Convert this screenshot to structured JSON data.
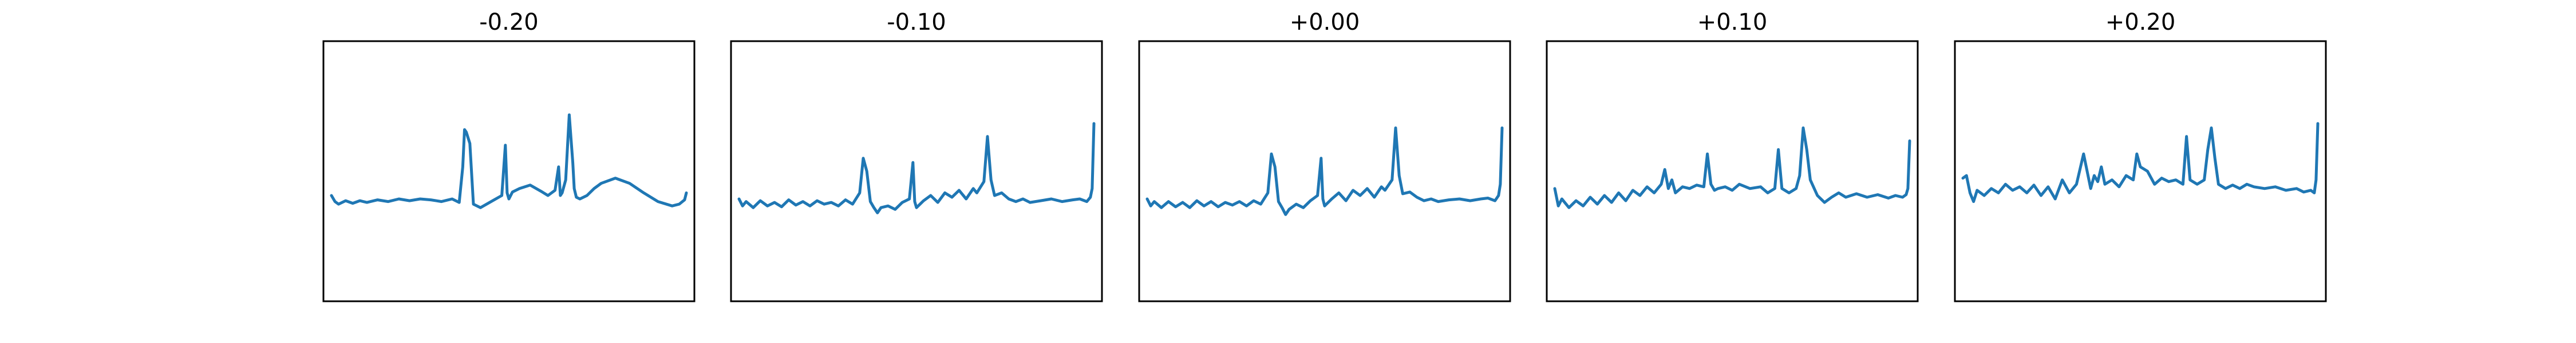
{
  "chart_data": [
    {
      "type": "line",
      "title": "-0.20",
      "xticks": [],
      "yticks": [],
      "grid": false,
      "series": [
        {
          "color": "#1f77b4",
          "x": [
            0.0,
            0.01,
            0.02,
            0.04,
            0.06,
            0.08,
            0.1,
            0.13,
            0.16,
            0.19,
            0.22,
            0.25,
            0.28,
            0.31,
            0.34,
            0.36,
            0.37,
            0.375,
            0.38,
            0.39,
            0.4,
            0.42,
            0.45,
            0.48,
            0.49,
            0.495,
            0.5,
            0.51,
            0.53,
            0.56,
            0.59,
            0.61,
            0.63,
            0.64,
            0.645,
            0.65,
            0.66,
            0.67,
            0.68,
            0.684,
            0.69,
            0.7,
            0.72,
            0.74,
            0.76,
            0.8,
            0.84,
            0.88,
            0.92,
            0.96,
            0.98,
            0.995,
            1.0
          ],
          "y": [
            0.02,
            -0.05,
            -0.08,
            -0.04,
            -0.07,
            -0.04,
            -0.06,
            -0.03,
            -0.05,
            -0.02,
            -0.04,
            -0.02,
            -0.03,
            -0.05,
            -0.02,
            -0.06,
            0.35,
            0.78,
            0.75,
            0.62,
            -0.08,
            -0.12,
            -0.05,
            0.02,
            0.6,
            0.05,
            -0.02,
            0.06,
            0.1,
            0.14,
            0.07,
            0.02,
            0.08,
            0.35,
            0.02,
            0.05,
            0.2,
            0.95,
            0.4,
            0.1,
            0.0,
            -0.02,
            0.02,
            0.1,
            0.16,
            0.22,
            0.16,
            0.05,
            -0.05,
            -0.1,
            -0.08,
            -0.03,
            0.05
          ]
        }
      ]
    },
    {
      "type": "line",
      "title": "-0.10",
      "xticks": [],
      "yticks": [],
      "grid": false,
      "series": [
        {
          "color": "#1f77b4",
          "x": [
            0.0,
            0.01,
            0.02,
            0.04,
            0.06,
            0.08,
            0.1,
            0.12,
            0.14,
            0.16,
            0.18,
            0.2,
            0.22,
            0.24,
            0.26,
            0.28,
            0.3,
            0.32,
            0.34,
            0.35,
            0.36,
            0.37,
            0.38,
            0.39,
            0.4,
            0.42,
            0.44,
            0.46,
            0.48,
            0.49,
            0.495,
            0.5,
            0.52,
            0.54,
            0.56,
            0.58,
            0.6,
            0.62,
            0.64,
            0.66,
            0.67,
            0.69,
            0.7,
            0.71,
            0.72,
            0.74,
            0.76,
            0.78,
            0.8,
            0.82,
            0.85,
            0.88,
            0.91,
            0.94,
            0.96,
            0.98,
            0.99,
            0.995,
            1.0
          ],
          "y": [
            -0.02,
            -0.1,
            -0.05,
            -0.12,
            -0.04,
            -0.1,
            -0.06,
            -0.11,
            -0.03,
            -0.09,
            -0.05,
            -0.1,
            -0.04,
            -0.08,
            -0.06,
            -0.1,
            -0.03,
            -0.08,
            0.05,
            0.45,
            0.3,
            -0.05,
            -0.12,
            -0.18,
            -0.12,
            -0.1,
            -0.14,
            -0.06,
            -0.02,
            0.4,
            -0.05,
            -0.12,
            -0.04,
            0.02,
            -0.06,
            0.05,
            0.0,
            0.08,
            -0.02,
            0.1,
            0.05,
            0.18,
            0.7,
            0.2,
            0.02,
            0.05,
            -0.02,
            -0.05,
            -0.02,
            -0.06,
            -0.04,
            -0.02,
            -0.05,
            -0.03,
            -0.02,
            -0.05,
            0.0,
            0.1,
            0.85
          ]
        }
      ]
    },
    {
      "type": "line",
      "title": "+0.00",
      "xticks": [],
      "yticks": [],
      "grid": false,
      "series": [
        {
          "color": "#1f77b4",
          "x": [
            0.0,
            0.01,
            0.02,
            0.04,
            0.06,
            0.08,
            0.1,
            0.12,
            0.14,
            0.16,
            0.18,
            0.2,
            0.22,
            0.24,
            0.26,
            0.28,
            0.3,
            0.32,
            0.34,
            0.35,
            0.36,
            0.37,
            0.38,
            0.39,
            0.4,
            0.42,
            0.44,
            0.46,
            0.48,
            0.49,
            0.495,
            0.5,
            0.52,
            0.54,
            0.56,
            0.58,
            0.6,
            0.62,
            0.64,
            0.66,
            0.67,
            0.69,
            0.7,
            0.71,
            0.72,
            0.74,
            0.76,
            0.78,
            0.8,
            0.82,
            0.85,
            0.88,
            0.91,
            0.94,
            0.96,
            0.98,
            0.99,
            0.995,
            1.0
          ],
          "y": [
            -0.02,
            -0.1,
            -0.05,
            -0.12,
            -0.05,
            -0.11,
            -0.06,
            -0.12,
            -0.04,
            -0.1,
            -0.05,
            -0.11,
            -0.06,
            -0.09,
            -0.05,
            -0.1,
            -0.04,
            -0.08,
            0.05,
            0.5,
            0.35,
            -0.05,
            -0.12,
            -0.2,
            -0.14,
            -0.08,
            -0.12,
            -0.04,
            0.02,
            0.45,
            -0.02,
            -0.1,
            -0.02,
            0.05,
            -0.04,
            0.08,
            0.02,
            0.1,
            0.0,
            0.12,
            0.08,
            0.2,
            0.8,
            0.25,
            0.04,
            0.06,
            0.0,
            -0.04,
            -0.02,
            -0.05,
            -0.03,
            -0.02,
            -0.04,
            -0.02,
            -0.01,
            -0.04,
            0.02,
            0.15,
            0.8
          ]
        }
      ]
    },
    {
      "type": "line",
      "title": "+0.10",
      "xticks": [],
      "yticks": [],
      "grid": false,
      "series": [
        {
          "color": "#1f77b4",
          "x": [
            0.0,
            0.01,
            0.02,
            0.04,
            0.06,
            0.08,
            0.1,
            0.12,
            0.14,
            0.16,
            0.18,
            0.2,
            0.22,
            0.24,
            0.26,
            0.28,
            0.3,
            0.31,
            0.32,
            0.33,
            0.34,
            0.36,
            0.38,
            0.4,
            0.42,
            0.43,
            0.44,
            0.45,
            0.46,
            0.48,
            0.5,
            0.52,
            0.55,
            0.58,
            0.6,
            0.62,
            0.63,
            0.64,
            0.66,
            0.68,
            0.69,
            0.7,
            0.71,
            0.72,
            0.74,
            0.76,
            0.78,
            0.8,
            0.82,
            0.85,
            0.88,
            0.91,
            0.94,
            0.96,
            0.98,
            0.99,
            0.995,
            1.0
          ],
          "y": [
            0.1,
            -0.1,
            -0.02,
            -0.12,
            -0.04,
            -0.1,
            0.0,
            -0.08,
            0.02,
            -0.06,
            0.05,
            -0.04,
            0.08,
            0.02,
            0.12,
            0.05,
            0.15,
            0.32,
            0.1,
            0.2,
            0.05,
            0.12,
            0.1,
            0.14,
            0.12,
            0.5,
            0.15,
            0.08,
            0.1,
            0.12,
            0.08,
            0.15,
            0.1,
            0.12,
            0.05,
            0.1,
            0.55,
            0.1,
            0.05,
            0.1,
            0.25,
            0.8,
            0.55,
            0.2,
            0.02,
            -0.06,
            0.0,
            0.05,
            0.0,
            0.04,
            0.0,
            0.03,
            -0.01,
            0.02,
            0.0,
            0.03,
            0.1,
            0.65
          ]
        }
      ]
    },
    {
      "type": "line",
      "title": "+0.20",
      "xticks": [],
      "yticks": [],
      "grid": false,
      "series": [
        {
          "color": "#1f77b4",
          "x": [
            0.0,
            0.01,
            0.02,
            0.03,
            0.04,
            0.06,
            0.08,
            0.1,
            0.12,
            0.14,
            0.16,
            0.18,
            0.2,
            0.22,
            0.24,
            0.26,
            0.28,
            0.3,
            0.32,
            0.34,
            0.36,
            0.37,
            0.38,
            0.39,
            0.4,
            0.42,
            0.44,
            0.46,
            0.48,
            0.49,
            0.5,
            0.52,
            0.54,
            0.56,
            0.58,
            0.6,
            0.62,
            0.63,
            0.64,
            0.66,
            0.68,
            0.69,
            0.7,
            0.71,
            0.72,
            0.74,
            0.76,
            0.78,
            0.8,
            0.82,
            0.85,
            0.88,
            0.91,
            0.94,
            0.96,
            0.98,
            0.99,
            0.995,
            1.0
          ],
          "y": [
            0.22,
            0.25,
            0.05,
            -0.05,
            0.08,
            0.02,
            0.1,
            0.05,
            0.15,
            0.08,
            0.12,
            0.05,
            0.14,
            0.02,
            0.12,
            -0.02,
            0.2,
            0.05,
            0.15,
            0.5,
            0.1,
            0.25,
            0.18,
            0.35,
            0.15,
            0.2,
            0.12,
            0.25,
            0.2,
            0.5,
            0.35,
            0.3,
            0.15,
            0.22,
            0.18,
            0.2,
            0.15,
            0.7,
            0.2,
            0.15,
            0.2,
            0.55,
            0.8,
            0.45,
            0.15,
            0.1,
            0.14,
            0.1,
            0.15,
            0.12,
            0.1,
            0.12,
            0.08,
            0.1,
            0.06,
            0.08,
            0.05,
            0.2,
            0.85
          ]
        }
      ]
    }
  ]
}
